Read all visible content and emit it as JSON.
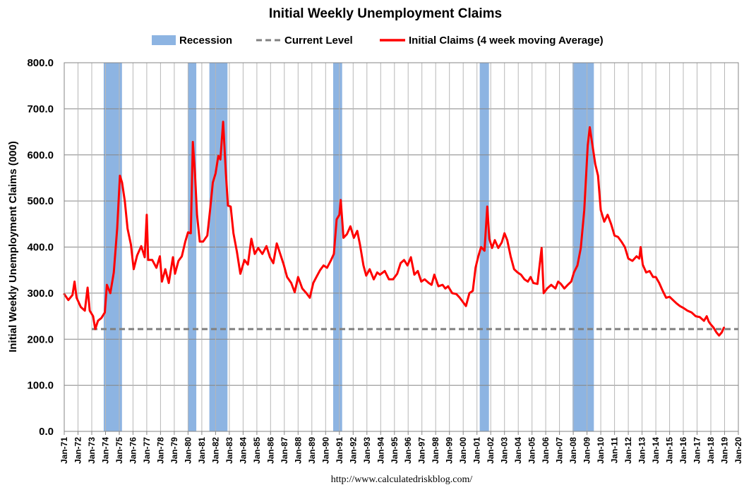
{
  "chart_data": {
    "type": "line",
    "title": "Initial Weekly Unemployment Claims",
    "ylabel": "Initial Weekly Unemployment Claims (000)",
    "xlabel": "",
    "ylim": [
      0,
      800
    ],
    "yticks": [
      "0.0",
      "100.0",
      "200.0",
      "300.0",
      "400.0",
      "500.0",
      "600.0",
      "700.0",
      "800.0"
    ],
    "xlim": [
      1971,
      2020
    ],
    "xticks": [
      "Jan-71",
      "Jan-72",
      "Jan-73",
      "Jan-74",
      "Jan-75",
      "Jan-76",
      "Jan-77",
      "Jan-78",
      "Jan-79",
      "Jan-80",
      "Jan-81",
      "Jan-82",
      "Jan-83",
      "Jan-84",
      "Jan-85",
      "Jan-86",
      "Jan-87",
      "Jan-88",
      "Jan-89",
      "Jan-90",
      "Jan-91",
      "Jan-92",
      "Jan-93",
      "Jan-94",
      "Jan-95",
      "Jan-96",
      "Jan-97",
      "Jan-98",
      "Jan-99",
      "Jan-00",
      "Jan-01",
      "Jan-02",
      "Jan-03",
      "Jan-04",
      "Jan-05",
      "Jan-06",
      "Jan-07",
      "Jan-08",
      "Jan-09",
      "Jan-10",
      "Jan-11",
      "Jan-12",
      "Jan-13",
      "Jan-14",
      "Jan-15",
      "Jan-16",
      "Jan-17",
      "Jan-18",
      "Jan-19",
      "Jan-20"
    ],
    "grid": true,
    "legend_placement": "top-center",
    "legend": [
      {
        "label": "Recession",
        "kind": "patch",
        "color": "#8db4e2"
      },
      {
        "label": "Current Level",
        "kind": "dash",
        "color": "#808080"
      },
      {
        "label": "Initial Claims (4 week moving Average)",
        "kind": "line",
        "color": "#ff0000"
      }
    ],
    "recessions": [
      [
        1973.87,
        1975.2
      ],
      [
        1980.0,
        1980.6
      ],
      [
        1981.55,
        1982.87
      ],
      [
        1990.55,
        1991.2
      ],
      [
        2001.2,
        2001.87
      ],
      [
        2007.95,
        2009.5
      ]
    ],
    "current_level": 222,
    "series": [
      {
        "color": "#ff0000",
        "points": [
          [
            1971.0,
            298
          ],
          [
            1971.3,
            285
          ],
          [
            1971.6,
            296
          ],
          [
            1971.75,
            325
          ],
          [
            1971.9,
            290
          ],
          [
            1972.2,
            270
          ],
          [
            1972.5,
            262
          ],
          [
            1972.7,
            312
          ],
          [
            1972.85,
            262
          ],
          [
            1973.1,
            250
          ],
          [
            1973.25,
            222
          ],
          [
            1973.45,
            240
          ],
          [
            1973.7,
            246
          ],
          [
            1973.95,
            258
          ],
          [
            1974.1,
            318
          ],
          [
            1974.35,
            300
          ],
          [
            1974.6,
            345
          ],
          [
            1974.85,
            440
          ],
          [
            1975.05,
            555
          ],
          [
            1975.2,
            540
          ],
          [
            1975.4,
            500
          ],
          [
            1975.6,
            440
          ],
          [
            1975.85,
            405
          ],
          [
            1976.05,
            352
          ],
          [
            1976.3,
            382
          ],
          [
            1976.6,
            402
          ],
          [
            1976.85,
            378
          ],
          [
            1977.0,
            470
          ],
          [
            1977.1,
            372
          ],
          [
            1977.4,
            372
          ],
          [
            1977.7,
            355
          ],
          [
            1977.95,
            380
          ],
          [
            1978.1,
            325
          ],
          [
            1978.35,
            352
          ],
          [
            1978.6,
            322
          ],
          [
            1978.9,
            378
          ],
          [
            1979.05,
            342
          ],
          [
            1979.3,
            370
          ],
          [
            1979.55,
            380
          ],
          [
            1979.8,
            412
          ],
          [
            1980.0,
            432
          ],
          [
            1980.2,
            430
          ],
          [
            1980.35,
            628
          ],
          [
            1980.5,
            560
          ],
          [
            1980.65,
            470
          ],
          [
            1980.85,
            412
          ],
          [
            1981.1,
            412
          ],
          [
            1981.4,
            425
          ],
          [
            1981.6,
            480
          ],
          [
            1981.8,
            540
          ],
          [
            1982.0,
            560
          ],
          [
            1982.2,
            598
          ],
          [
            1982.35,
            590
          ],
          [
            1982.55,
            672
          ],
          [
            1982.75,
            560
          ],
          [
            1982.9,
            490
          ],
          [
            1983.1,
            488
          ],
          [
            1983.3,
            430
          ],
          [
            1983.55,
            390
          ],
          [
            1983.8,
            342
          ],
          [
            1984.1,
            372
          ],
          [
            1984.35,
            362
          ],
          [
            1984.6,
            418
          ],
          [
            1984.85,
            385
          ],
          [
            1985.1,
            398
          ],
          [
            1985.4,
            385
          ],
          [
            1985.7,
            402
          ],
          [
            1985.95,
            378
          ],
          [
            1986.2,
            365
          ],
          [
            1986.45,
            408
          ],
          [
            1986.7,
            385
          ],
          [
            1986.95,
            362
          ],
          [
            1987.2,
            335
          ],
          [
            1987.5,
            322
          ],
          [
            1987.75,
            302
          ],
          [
            1988.0,
            335
          ],
          [
            1988.3,
            310
          ],
          [
            1988.6,
            300
          ],
          [
            1988.85,
            290
          ],
          [
            1989.1,
            322
          ],
          [
            1989.35,
            336
          ],
          [
            1989.6,
            350
          ],
          [
            1989.85,
            360
          ],
          [
            1990.1,
            355
          ],
          [
            1990.4,
            372
          ],
          [
            1990.6,
            385
          ],
          [
            1990.8,
            460
          ],
          [
            1991.0,
            470
          ],
          [
            1991.1,
            502
          ],
          [
            1991.3,
            420
          ],
          [
            1991.55,
            428
          ],
          [
            1991.8,
            445
          ],
          [
            1992.05,
            420
          ],
          [
            1992.3,
            435
          ],
          [
            1992.5,
            405
          ],
          [
            1992.75,
            360
          ],
          [
            1992.95,
            338
          ],
          [
            1993.2,
            352
          ],
          [
            1993.5,
            330
          ],
          [
            1993.75,
            345
          ],
          [
            1993.95,
            340
          ],
          [
            1994.3,
            348
          ],
          [
            1994.6,
            330
          ],
          [
            1994.9,
            330
          ],
          [
            1995.2,
            342
          ],
          [
            1995.45,
            365
          ],
          [
            1995.7,
            372
          ],
          [
            1995.95,
            360
          ],
          [
            1996.2,
            378
          ],
          [
            1996.45,
            340
          ],
          [
            1996.7,
            348
          ],
          [
            1996.95,
            325
          ],
          [
            1997.2,
            330
          ],
          [
            1997.5,
            322
          ],
          [
            1997.7,
            318
          ],
          [
            1997.9,
            340
          ],
          [
            1998.2,
            315
          ],
          [
            1998.5,
            318
          ],
          [
            1998.7,
            310
          ],
          [
            1998.9,
            315
          ],
          [
            1999.2,
            300
          ],
          [
            1999.5,
            298
          ],
          [
            1999.75,
            290
          ],
          [
            2000.0,
            280
          ],
          [
            2000.2,
            272
          ],
          [
            2000.45,
            300
          ],
          [
            2000.7,
            305
          ],
          [
            2000.9,
            355
          ],
          [
            2001.1,
            380
          ],
          [
            2001.3,
            400
          ],
          [
            2001.55,
            392
          ],
          [
            2001.75,
            488
          ],
          [
            2001.9,
            418
          ],
          [
            2002.1,
            398
          ],
          [
            2002.3,
            415
          ],
          [
            2002.55,
            398
          ],
          [
            2002.8,
            410
          ],
          [
            2003.0,
            430
          ],
          [
            2003.2,
            415
          ],
          [
            2003.45,
            380
          ],
          [
            2003.7,
            352
          ],
          [
            2003.95,
            345
          ],
          [
            2004.2,
            340
          ],
          [
            2004.45,
            330
          ],
          [
            2004.7,
            325
          ],
          [
            2004.9,
            335
          ],
          [
            2005.1,
            322
          ],
          [
            2005.4,
            320
          ],
          [
            2005.7,
            398
          ],
          [
            2005.85,
            300
          ],
          [
            2006.1,
            310
          ],
          [
            2006.4,
            318
          ],
          [
            2006.7,
            310
          ],
          [
            2006.9,
            325
          ],
          [
            2007.1,
            320
          ],
          [
            2007.35,
            310
          ],
          [
            2007.6,
            318
          ],
          [
            2007.85,
            325
          ],
          [
            2008.05,
            345
          ],
          [
            2008.3,
            360
          ],
          [
            2008.55,
            398
          ],
          [
            2008.8,
            480
          ],
          [
            2009.05,
            620
          ],
          [
            2009.2,
            660
          ],
          [
            2009.4,
            620
          ],
          [
            2009.6,
            580
          ],
          [
            2009.8,
            555
          ],
          [
            2010.0,
            480
          ],
          [
            2010.25,
            455
          ],
          [
            2010.5,
            470
          ],
          [
            2010.75,
            450
          ],
          [
            2011.0,
            425
          ],
          [
            2011.25,
            422
          ],
          [
            2011.5,
            412
          ],
          [
            2011.75,
            400
          ],
          [
            2012.0,
            375
          ],
          [
            2012.3,
            370
          ],
          [
            2012.6,
            380
          ],
          [
            2012.8,
            375
          ],
          [
            2012.9,
            400
          ],
          [
            2013.05,
            362
          ],
          [
            2013.3,
            345
          ],
          [
            2013.55,
            348
          ],
          [
            2013.8,
            335
          ],
          [
            2014.0,
            335
          ],
          [
            2014.25,
            322
          ],
          [
            2014.5,
            305
          ],
          [
            2014.75,
            290
          ],
          [
            2015.0,
            292
          ],
          [
            2015.25,
            285
          ],
          [
            2015.5,
            278
          ],
          [
            2015.75,
            272
          ],
          [
            2016.0,
            268
          ],
          [
            2016.3,
            262
          ],
          [
            2016.6,
            258
          ],
          [
            2016.9,
            250
          ],
          [
            2017.2,
            248
          ],
          [
            2017.5,
            240
          ],
          [
            2017.7,
            250
          ],
          [
            2017.85,
            238
          ],
          [
            2018.0,
            232
          ],
          [
            2018.2,
            225
          ],
          [
            2018.4,
            215
          ],
          [
            2018.6,
            208
          ],
          [
            2018.8,
            215
          ],
          [
            2018.95,
            225
          ]
        ]
      }
    ],
    "source_note": "http://www.calculatedriskblog.com/"
  }
}
